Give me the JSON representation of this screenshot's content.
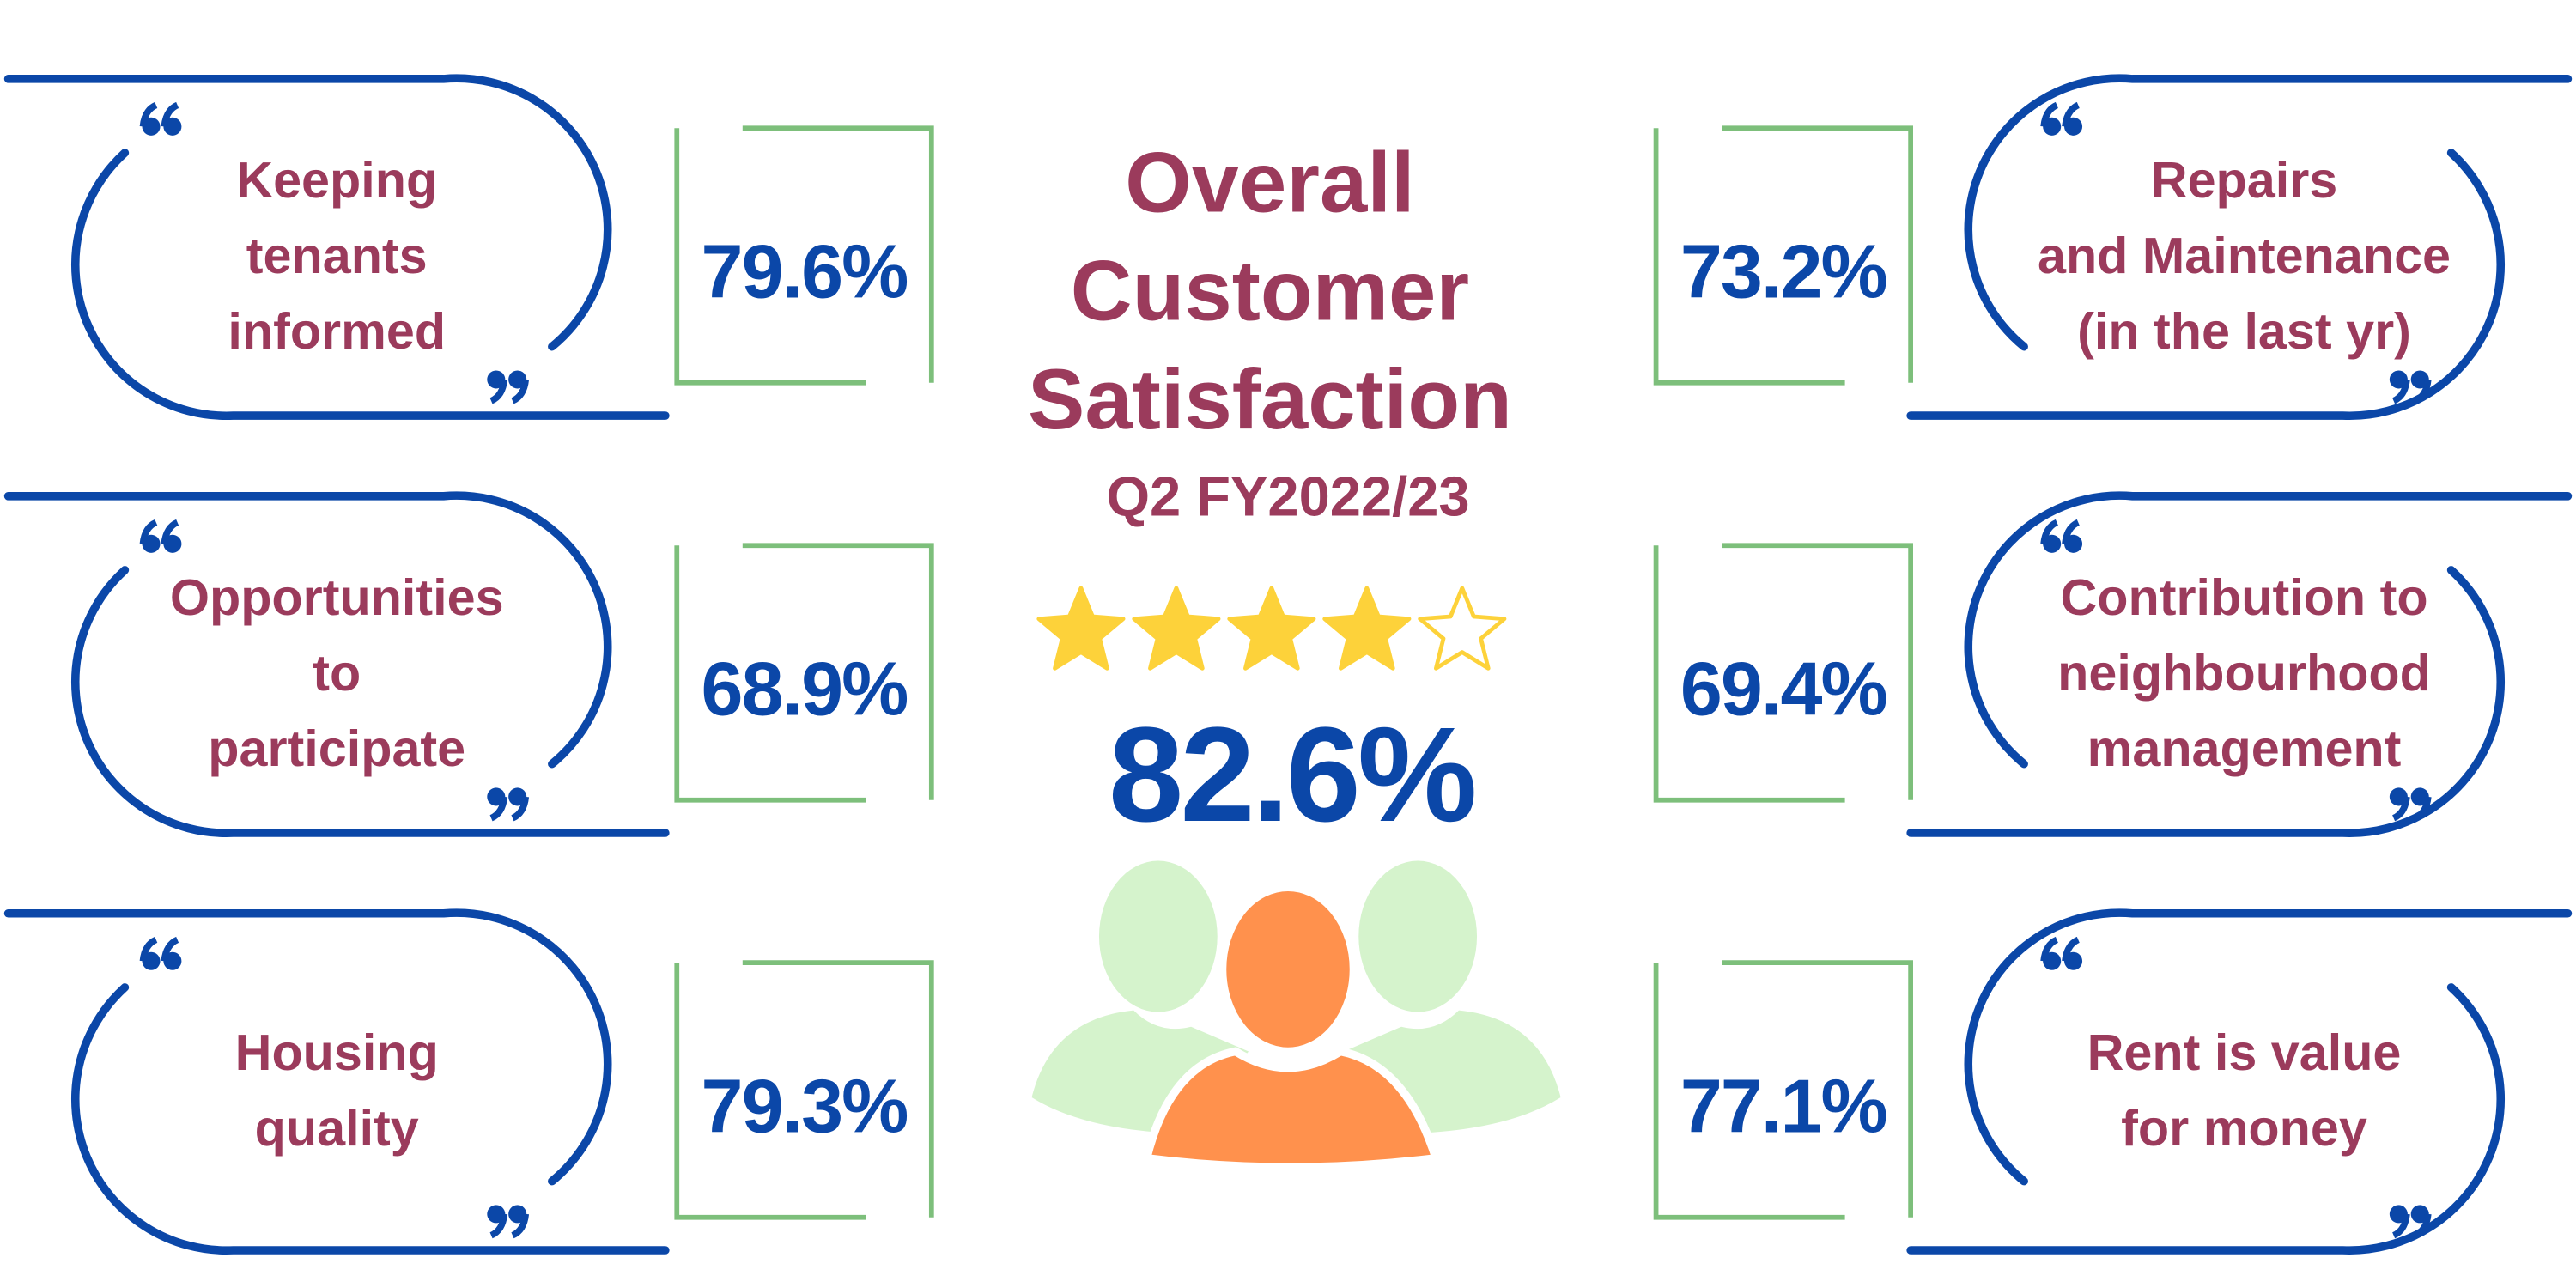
{
  "title_lines": [
    "Overall",
    "Customer",
    "Satisfaction"
  ],
  "subtitle": "Q2 FY2022/23",
  "rating": {
    "filled": 4,
    "total": 5
  },
  "overall": "82.6%",
  "left_items": [
    {
      "label_lines": [
        "Keeping",
        "tenants",
        "informed"
      ],
      "value": "79.6%"
    },
    {
      "label_lines": [
        "Opportunities",
        "to",
        "participate"
      ],
      "value": "68.9%"
    },
    {
      "label_lines": [
        "Housing",
        "quality"
      ],
      "value": "79.3%"
    }
  ],
  "right_items": [
    {
      "label_lines": [
        "Repairs",
        "and Maintenance",
        "(in the last yr)"
      ],
      "value": "73.2%"
    },
    {
      "label_lines": [
        "Contribution to",
        "neighbourhood",
        "management"
      ],
      "value": "69.4%"
    },
    {
      "label_lines": [
        "Rent is value",
        "for money"
      ],
      "value": "77.1%"
    }
  ]
}
